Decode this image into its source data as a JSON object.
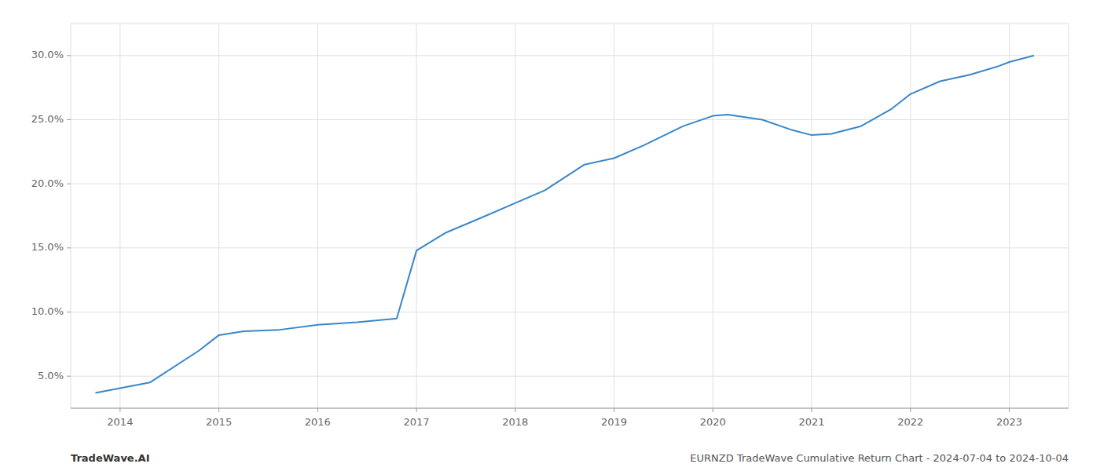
{
  "chart_data": {
    "type": "line",
    "x": [
      2013.75,
      2014.3,
      2014.8,
      2015.0,
      2015.25,
      2015.6,
      2016.0,
      2016.4,
      2016.8,
      2017.0,
      2017.3,
      2017.7,
      2018.0,
      2018.3,
      2018.7,
      2019.0,
      2019.3,
      2019.7,
      2020.0,
      2020.15,
      2020.5,
      2020.8,
      2021.0,
      2021.2,
      2021.5,
      2021.8,
      2022.0,
      2022.3,
      2022.6,
      2022.9,
      2023.0,
      2023.25
    ],
    "values": [
      3.7,
      4.5,
      7.0,
      8.2,
      8.5,
      8.6,
      9.0,
      9.2,
      9.5,
      14.8,
      16.2,
      17.5,
      18.5,
      19.5,
      21.5,
      22.0,
      23.0,
      24.5,
      25.3,
      25.4,
      25.0,
      24.2,
      23.8,
      23.9,
      24.5,
      25.8,
      27.0,
      28.0,
      28.5,
      29.2,
      29.5,
      30.0
    ],
    "color": "#3a87c8",
    "xlim": [
      2013.5,
      2023.6
    ],
    "ylim": [
      2.5,
      32.5
    ],
    "xticks": [
      2014,
      2015,
      2016,
      2017,
      2018,
      2019,
      2020,
      2021,
      2022,
      2023
    ],
    "yticks": [
      {
        "value": 5.0,
        "label": "5.0%"
      },
      {
        "value": 10.0,
        "label": "10.0%"
      },
      {
        "value": 15.0,
        "label": "15.0%"
      },
      {
        "value": 20.0,
        "label": "20.0%"
      },
      {
        "value": 25.0,
        "label": "25.0%"
      },
      {
        "value": 30.0,
        "label": "30.0%"
      }
    ],
    "grid": true,
    "annotations": [
      "TradeWave.AI",
      "EURNZD TradeWave Cumulative Return Chart - 2024-07-04 to 2024-10-04"
    ]
  }
}
